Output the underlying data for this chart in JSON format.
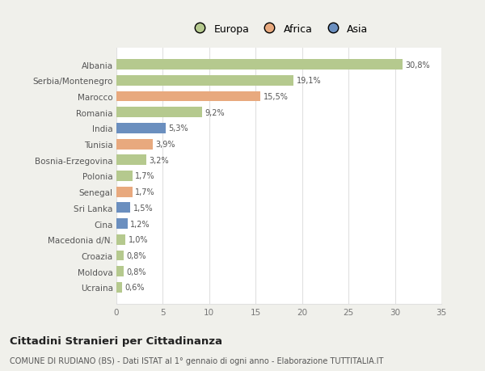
{
  "countries": [
    "Albania",
    "Serbia/Montenegro",
    "Marocco",
    "Romania",
    "India",
    "Tunisia",
    "Bosnia-Erzegovina",
    "Polonia",
    "Senegal",
    "Sri Lanka",
    "Cina",
    "Macedonia d/N.",
    "Croazia",
    "Moldova",
    "Ucraina"
  ],
  "values": [
    30.8,
    19.1,
    15.5,
    9.2,
    5.3,
    3.9,
    3.2,
    1.7,
    1.7,
    1.5,
    1.2,
    1.0,
    0.8,
    0.8,
    0.6
  ],
  "labels": [
    "30,8%",
    "19,1%",
    "15,5%",
    "9,2%",
    "5,3%",
    "3,9%",
    "3,2%",
    "1,7%",
    "1,7%",
    "1,5%",
    "1,2%",
    "1,0%",
    "0,8%",
    "0,8%",
    "0,6%"
  ],
  "continents": [
    "Europa",
    "Europa",
    "Africa",
    "Europa",
    "Asia",
    "Africa",
    "Europa",
    "Europa",
    "Africa",
    "Asia",
    "Asia",
    "Europa",
    "Europa",
    "Europa",
    "Europa"
  ],
  "colors": {
    "Europa": "#b5c98e",
    "Africa": "#e8a97e",
    "Asia": "#6b8fbf"
  },
  "legend_labels": [
    "Europa",
    "Africa",
    "Asia"
  ],
  "legend_colors": [
    "#b5c98e",
    "#e8a97e",
    "#6b8fbf"
  ],
  "xlim": [
    0,
    35
  ],
  "xticks": [
    0,
    5,
    10,
    15,
    20,
    25,
    30,
    35
  ],
  "title": "Cittadini Stranieri per Cittadinanza",
  "subtitle": "COMUNE DI RUDIANO (BS) - Dati ISTAT al 1° gennaio di ogni anno - Elaborazione TUTTITALIA.IT",
  "bg_color": "#f0f0eb",
  "plot_bg_color": "#ffffff",
  "grid_color": "#e0e0e0",
  "bar_height": 0.65,
  "label_fontsize": 7.0,
  "tick_fontsize": 7.5,
  "title_fontsize": 9.5,
  "subtitle_fontsize": 7.0
}
